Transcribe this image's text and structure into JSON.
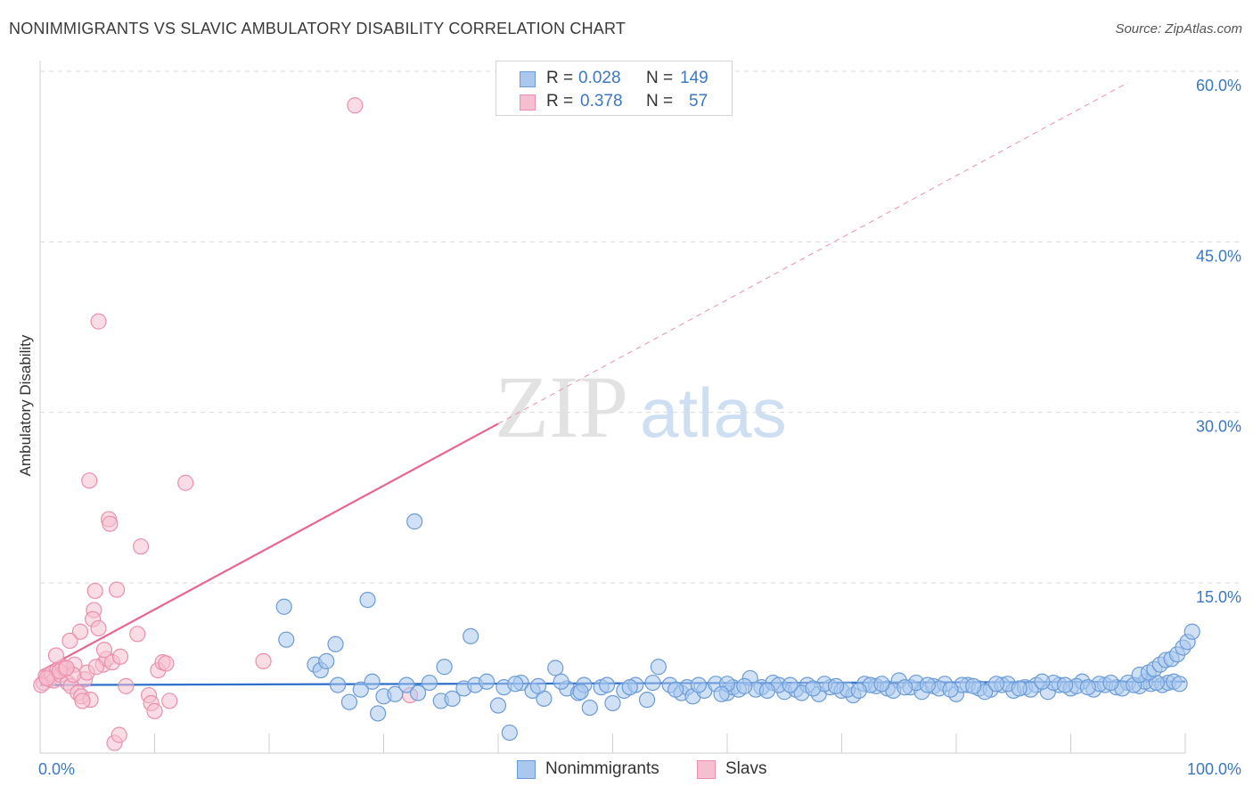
{
  "title": "NONIMMIGRANTS VS SLAVIC AMBULATORY DISABILITY CORRELATION CHART",
  "source": "Source: ZipAtlas.com",
  "watermark": {
    "zip": "ZIP",
    "atlas": "atlas"
  },
  "colors": {
    "blue_fill": "#aac8ee",
    "blue_stroke": "#6b9bd6",
    "blue_line": "#2f6fcc",
    "pink_fill": "#f6bfd0",
    "pink_stroke": "#ec8fae",
    "pink_line": "#e6668f",
    "grid": "#d9d9d9",
    "axis_text": "#3b78c3"
  },
  "legend": {
    "rows": [
      {
        "r_label": "R =",
        "r_value": "0.028",
        "n_label": "N =",
        "n_value": "149"
      },
      {
        "r_label": "R =",
        "r_value": "0.378",
        "n_label": "N =",
        "n_value": "57"
      }
    ]
  },
  "bottom_legend": [
    {
      "name": "Nonimmigrants"
    },
    {
      "name": "Slavs"
    }
  ],
  "chart_data": {
    "type": "scatter",
    "title": "NONIMMIGRANTS VS SLAVIC AMBULATORY DISABILITY CORRELATION CHART",
    "xlabel": "",
    "ylabel": "Ambulatory Disability",
    "xlim": [
      0,
      100
    ],
    "ylim": [
      0,
      62
    ],
    "y_ticks": [
      15,
      30,
      45,
      60
    ],
    "y_tick_labels": [
      "15.0%",
      "30.0%",
      "45.0%",
      "60.0%"
    ],
    "x_tick_labels": [
      "0.0%",
      "100.0%"
    ],
    "grid": true,
    "series": [
      {
        "name": "Nonimmigrants",
        "r": 0.028,
        "n": 149,
        "trend": {
          "x": [
            0,
            100
          ],
          "y": [
            6.0,
            6.3
          ],
          "dashed_extension": false
        },
        "points": [
          [
            21.3,
            12.9
          ],
          [
            21.5,
            10.0
          ],
          [
            24.0,
            7.8
          ],
          [
            24.5,
            7.3
          ],
          [
            25.0,
            8.1
          ],
          [
            25.8,
            9.6
          ],
          [
            28.6,
            13.5
          ],
          [
            32.7,
            20.4
          ],
          [
            35.3,
            7.6
          ],
          [
            37.6,
            10.3
          ],
          [
            26.0,
            6.0
          ],
          [
            27.0,
            4.5
          ],
          [
            28.0,
            5.6
          ],
          [
            29.0,
            6.3
          ],
          [
            29.5,
            3.5
          ],
          [
            30.0,
            5.0
          ],
          [
            31.0,
            5.2
          ],
          [
            32.0,
            6.0
          ],
          [
            33.0,
            5.3
          ],
          [
            34.0,
            6.2
          ],
          [
            35.0,
            4.6
          ],
          [
            36.0,
            4.8
          ],
          [
            37.0,
            5.7
          ],
          [
            38.0,
            6.0
          ],
          [
            39.0,
            6.3
          ],
          [
            40.0,
            4.2
          ],
          [
            40.5,
            5.8
          ],
          [
            41.0,
            1.8
          ],
          [
            42.0,
            6.2
          ],
          [
            43.0,
            5.5
          ],
          [
            44.0,
            4.8
          ],
          [
            45.0,
            7.5
          ],
          [
            46.0,
            5.7
          ],
          [
            47.0,
            5.3
          ],
          [
            47.5,
            6.0
          ],
          [
            48.0,
            4.0
          ],
          [
            49.0,
            5.8
          ],
          [
            50.0,
            4.4
          ],
          [
            51.0,
            5.5
          ],
          [
            52.0,
            6.0
          ],
          [
            53.0,
            4.7
          ],
          [
            54.0,
            7.6
          ],
          [
            55.0,
            6.0
          ],
          [
            56.0,
            5.3
          ],
          [
            56.5,
            5.8
          ],
          [
            57.0,
            5.0
          ],
          [
            58.0,
            5.5
          ],
          [
            59.0,
            6.1
          ],
          [
            60.0,
            5.3
          ],
          [
            60.5,
            5.8
          ],
          [
            61.0,
            5.6
          ],
          [
            62.0,
            6.6
          ],
          [
            63.0,
            5.8
          ],
          [
            64.0,
            6.2
          ],
          [
            65.0,
            5.4
          ],
          [
            66.0,
            5.6
          ],
          [
            67.0,
            6.0
          ],
          [
            68.0,
            5.2
          ],
          [
            69.0,
            5.8
          ],
          [
            70.0,
            5.5
          ],
          [
            71.0,
            5.1
          ],
          [
            72.0,
            6.1
          ],
          [
            73.0,
            5.9
          ],
          [
            74.0,
            5.7
          ],
          [
            75.0,
            6.4
          ],
          [
            76.0,
            5.8
          ],
          [
            77.0,
            5.4
          ],
          [
            78.0,
            5.9
          ],
          [
            79.0,
            6.1
          ],
          [
            80.0,
            5.2
          ],
          [
            81.0,
            6.0
          ],
          [
            82.0,
            5.7
          ],
          [
            83.0,
            5.6
          ],
          [
            84.0,
            6.0
          ],
          [
            85.0,
            5.5
          ],
          [
            86.0,
            5.8
          ],
          [
            87.0,
            6.0
          ],
          [
            88.0,
            5.4
          ],
          [
            89.0,
            6.0
          ],
          [
            90.0,
            5.7
          ],
          [
            91.0,
            6.3
          ],
          [
            92.0,
            5.6
          ],
          [
            93.0,
            6.0
          ],
          [
            94.0,
            5.8
          ],
          [
            95.0,
            6.2
          ],
          [
            96.0,
            5.9
          ],
          [
            97.0,
            6.1
          ],
          [
            98.0,
            6.0
          ],
          [
            98.5,
            6.2
          ],
          [
            99.0,
            6.3
          ],
          [
            99.5,
            6.1
          ],
          [
            60.0,
            6.1
          ],
          [
            62.5,
            5.6
          ],
          [
            64.5,
            6.0
          ],
          [
            66.5,
            5.3
          ],
          [
            68.5,
            6.1
          ],
          [
            70.5,
            5.6
          ],
          [
            72.5,
            6.0
          ],
          [
            74.5,
            5.5
          ],
          [
            76.5,
            6.2
          ],
          [
            78.5,
            5.7
          ],
          [
            80.5,
            6.0
          ],
          [
            82.5,
            5.4
          ],
          [
            84.5,
            6.1
          ],
          [
            86.5,
            5.6
          ],
          [
            88.5,
            6.2
          ],
          [
            90.5,
            5.9
          ],
          [
            92.5,
            6.1
          ],
          [
            94.5,
            5.7
          ],
          [
            96.5,
            6.3
          ],
          [
            97.5,
            6.2
          ],
          [
            41.5,
            6.1
          ],
          [
            43.5,
            5.9
          ],
          [
            45.5,
            6.3
          ],
          [
            47.2,
            5.4
          ],
          [
            49.5,
            6.0
          ],
          [
            51.5,
            5.8
          ],
          [
            53.5,
            6.2
          ],
          [
            55.5,
            5.6
          ],
          [
            57.5,
            6.0
          ],
          [
            59.5,
            5.2
          ],
          [
            61.5,
            5.9
          ],
          [
            63.5,
            5.5
          ],
          [
            65.5,
            6.0
          ],
          [
            67.5,
            5.7
          ],
          [
            69.5,
            5.9
          ],
          [
            71.5,
            5.5
          ],
          [
            73.5,
            6.1
          ],
          [
            75.5,
            5.8
          ],
          [
            77.5,
            6.0
          ],
          [
            79.5,
            5.6
          ],
          [
            81.5,
            5.9
          ],
          [
            83.5,
            6.1
          ],
          [
            85.5,
            5.7
          ],
          [
            87.5,
            6.3
          ],
          [
            89.5,
            6.0
          ],
          [
            91.5,
            5.8
          ],
          [
            93.5,
            6.2
          ],
          [
            95.5,
            6.0
          ],
          [
            96.0,
            6.9
          ],
          [
            96.8,
            7.1
          ],
          [
            97.3,
            7.4
          ],
          [
            97.8,
            7.8
          ],
          [
            98.3,
            8.2
          ],
          [
            98.8,
            8.3
          ],
          [
            99.3,
            8.7
          ],
          [
            99.8,
            9.3
          ],
          [
            100.2,
            9.8
          ],
          [
            100.6,
            10.7
          ]
        ]
      },
      {
        "name": "Slavs",
        "r": 0.378,
        "n": 57,
        "trend": {
          "x": [
            0,
            40
          ],
          "y": [
            7.2,
            29.0
          ],
          "dashed_extension": true,
          "extension_to": [
            95,
            59.0
          ]
        },
        "points": [
          [
            27.5,
            57.0
          ],
          [
            5.1,
            38.0
          ],
          [
            4.3,
            24.0
          ],
          [
            12.7,
            23.8
          ],
          [
            6.0,
            20.6
          ],
          [
            6.1,
            20.2
          ],
          [
            8.8,
            18.2
          ],
          [
            4.8,
            14.3
          ],
          [
            6.7,
            14.4
          ],
          [
            4.7,
            12.6
          ],
          [
            4.6,
            11.8
          ],
          [
            5.1,
            11.0
          ],
          [
            3.5,
            10.7
          ],
          [
            8.5,
            10.5
          ],
          [
            2.6,
            9.9
          ],
          [
            0.3,
            6.2
          ],
          [
            0.5,
            6.8
          ],
          [
            0.8,
            6.5
          ],
          [
            1.0,
            7.0
          ],
          [
            1.2,
            6.4
          ],
          [
            1.5,
            7.3
          ],
          [
            1.8,
            6.9
          ],
          [
            2.0,
            7.6
          ],
          [
            2.2,
            7.4
          ],
          [
            2.4,
            6.2
          ],
          [
            2.7,
            5.9
          ],
          [
            3.0,
            7.8
          ],
          [
            3.3,
            5.3
          ],
          [
            3.6,
            5.0
          ],
          [
            3.9,
            6.5
          ],
          [
            4.1,
            7.1
          ],
          [
            4.4,
            4.7
          ],
          [
            5.5,
            7.8
          ],
          [
            5.8,
            8.3
          ],
          [
            6.3,
            8.0
          ],
          [
            7.0,
            8.5
          ],
          [
            7.5,
            5.9
          ],
          [
            9.5,
            5.1
          ],
          [
            9.7,
            4.4
          ],
          [
            10.0,
            3.7
          ],
          [
            10.3,
            7.3
          ],
          [
            10.7,
            8.0
          ],
          [
            11.0,
            7.9
          ],
          [
            11.3,
            4.6
          ],
          [
            19.5,
            8.1
          ],
          [
            32.3,
            5.1
          ],
          [
            1.4,
            8.6
          ],
          [
            6.5,
            0.9
          ],
          [
            6.9,
            1.6
          ],
          [
            3.7,
            4.6
          ],
          [
            2.9,
            6.9
          ],
          [
            5.6,
            9.1
          ],
          [
            0.1,
            6.0
          ],
          [
            0.6,
            6.6
          ],
          [
            1.7,
            7.2
          ],
          [
            2.3,
            7.5
          ],
          [
            4.9,
            7.6
          ]
        ]
      }
    ]
  }
}
